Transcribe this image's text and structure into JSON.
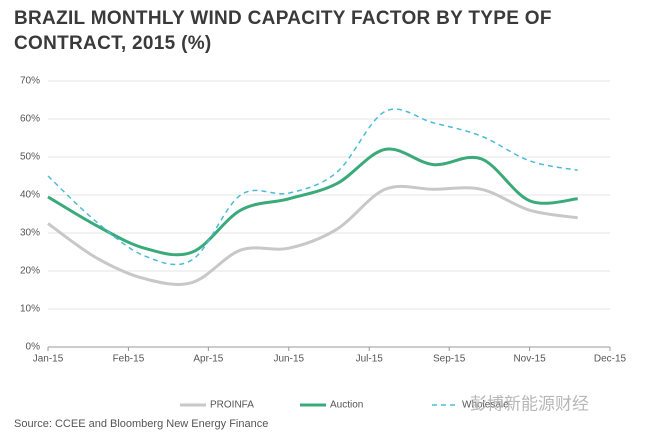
{
  "chart_data": {
    "type": "line",
    "title": "BRAZIL MONTHLY WIND CAPACITY FACTOR BY TYPE OF CONTRACT, 2015 (%)",
    "source": "Source:  CCEE and Bloomberg New Energy Finance",
    "watermark": "彭博新能源财经",
    "x": [
      0,
      1,
      2,
      3,
      4,
      5,
      6,
      7,
      8,
      9,
      10,
      11
    ],
    "xlim": [
      0,
      11.67
    ],
    "xticks": [
      {
        "value": 0,
        "label": "Jan-15"
      },
      {
        "value": 1.67,
        "label": "Feb-15"
      },
      {
        "value": 3.33,
        "label": "Apr-15"
      },
      {
        "value": 5,
        "label": "Jun-15"
      },
      {
        "value": 6.67,
        "label": "Jul-15"
      },
      {
        "value": 8.33,
        "label": "Sep-15"
      },
      {
        "value": 10,
        "label": "Nov-15"
      },
      {
        "value": 11.67,
        "label": "Dec-15"
      }
    ],
    "ylim": [
      0,
      70
    ],
    "yticks": [
      {
        "value": 0,
        "label": "0%"
      },
      {
        "value": 10,
        "label": "10%"
      },
      {
        "value": 20,
        "label": "20%"
      },
      {
        "value": 30,
        "label": "30%"
      },
      {
        "value": 40,
        "label": "40%"
      },
      {
        "value": 50,
        "label": "50%"
      },
      {
        "value": 60,
        "label": "60%"
      },
      {
        "value": 70,
        "label": "70%"
      }
    ],
    "grid": true,
    "series": [
      {
        "name": "PROINFA",
        "color": "#c8c8c8",
        "dashed": false,
        "values": [
          32.5,
          23.5,
          18,
          17,
          25.5,
          26,
          31,
          41.5,
          41.5,
          41.5,
          36,
          34
        ]
      },
      {
        "name": "Auction",
        "color": "#3aaa7a",
        "dashed": false,
        "values": [
          39.5,
          32,
          26,
          25,
          36,
          39,
          43,
          52,
          48,
          49.5,
          38.5,
          39
        ]
      },
      {
        "name": "Wholesale",
        "color": "#4bbcd6",
        "dashed": true,
        "values": [
          45,
          33,
          24,
          23,
          40,
          40.5,
          46,
          62,
          59,
          55.5,
          49,
          46.5
        ]
      }
    ]
  }
}
